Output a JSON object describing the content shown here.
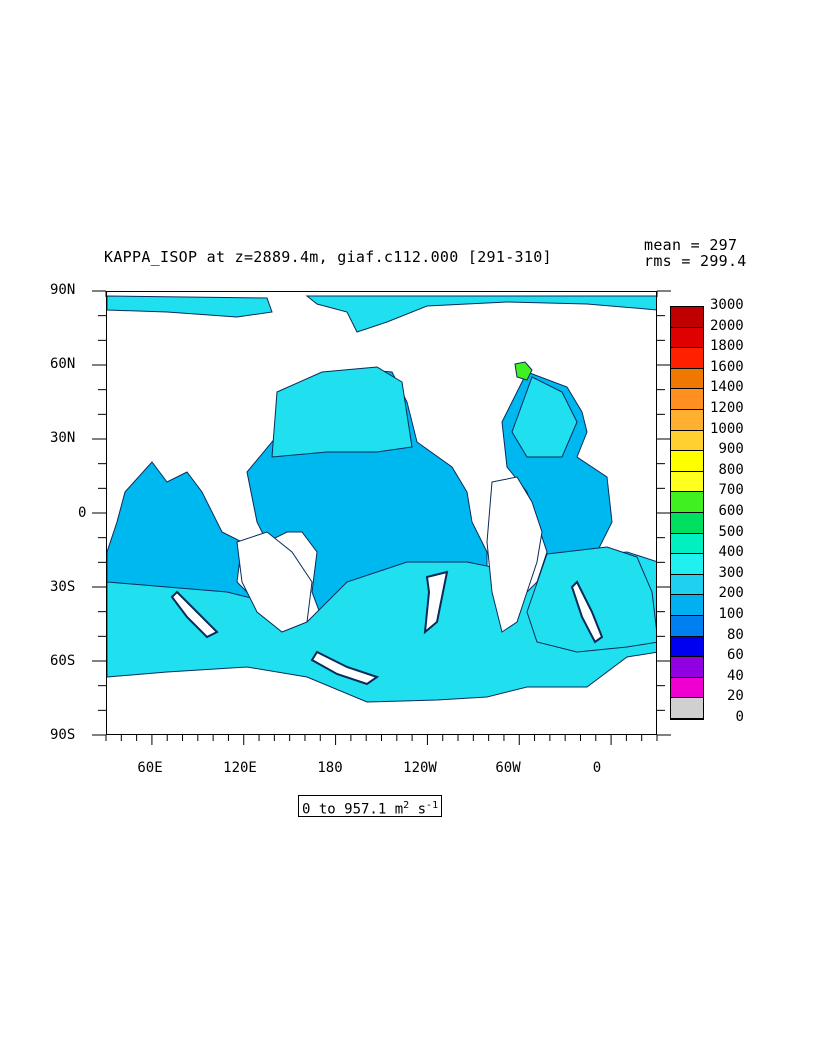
{
  "title": "KAPPA_ISOP at z=2889.4m, giaf.c112.000 [291-310]",
  "stats": {
    "mean": "mean = 297",
    "rms": "rms = 299.4"
  },
  "lat_labels": [
    "90N",
    "60N",
    "30N",
    "0",
    "30S",
    "60S",
    "90S"
  ],
  "lon_labels": [
    "60E",
    "120E",
    "180",
    "120W",
    "60W",
    "0"
  ],
  "colorbar": {
    "labels": [
      "3000",
      "2000",
      "1800",
      "1600",
      "1400",
      "1200",
      "1000",
      "900",
      "800",
      "700",
      "600",
      "500",
      "400",
      "300",
      "200",
      "100",
      "80",
      "60",
      "40",
      "20",
      "0"
    ],
    "colors": [
      "#c00000",
      "#e00000",
      "#ff2000",
      "#f07800",
      "#ff9020",
      "#ffb030",
      "#ffd030",
      "#ffff00",
      "#ffff20",
      "#40f020",
      "#00e060",
      "#00f0c0",
      "#20f0f0",
      "#20d0f0",
      "#00b0f0",
      "#0080f0",
      "#0000f0",
      "#9000e0",
      "#f000d0",
      "#d0d0d0",
      "#707070"
    ]
  },
  "range_label": {
    "text": "0 to 957.1 m",
    "unit_sup1": "2",
    "unit_mid": " s",
    "unit_sup2": "-1"
  },
  "map_colors": {
    "land": "#ffffff",
    "ocean_300_400": "#20e0f0",
    "ocean_200_300": "#00b8f0",
    "ocean_100_200": "#0080f0",
    "coast": "#0a2a5a"
  }
}
